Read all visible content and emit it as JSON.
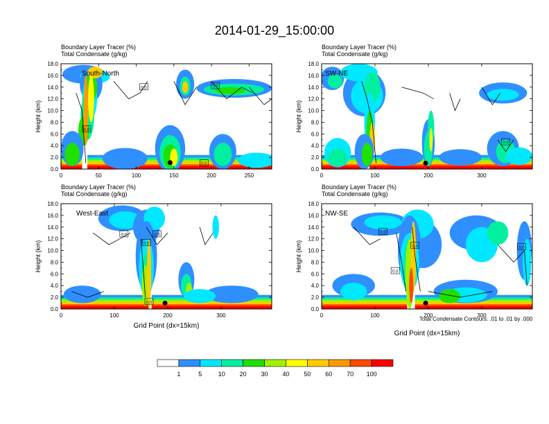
{
  "figure": {
    "title": "2014-01-29_15:00:00",
    "bottom_note": "Total Condensate Contours: .01 to .01 by .000"
  },
  "colorbar": {
    "labels": [
      "1",
      "5",
      "10",
      "20",
      "30",
      "40",
      "50",
      "60",
      "70",
      "100"
    ],
    "colors": [
      "#ffffff",
      "#2f8fff",
      "#00e8ff",
      "#00f0a0",
      "#20e000",
      "#a0f000",
      "#ffff00",
      "#ffcc00",
      "#ff9900",
      "#ff4a00",
      "#ff0000"
    ]
  },
  "chart_data": [
    {
      "type": "heatmap",
      "id": "sn",
      "label": "South-North",
      "subtitle_line1": "Boundary Layer Tracer    (%)",
      "subtitle_line2": "Total Condensate    (g/kg)",
      "ylabel": "Height (km)",
      "xlabel": "",
      "xlim": [
        0,
        280
      ],
      "ylim": [
        0,
        18
      ],
      "xticks": [
        0,
        50,
        100,
        150,
        200,
        250
      ],
      "yticks": [
        0,
        2,
        4,
        6,
        8,
        10,
        12,
        14,
        16,
        18
      ],
      "ytick_labels": [
        "0.0",
        "2.0",
        "4.0",
        "6.0",
        "8.0",
        "10.0",
        "12.0",
        "14.0",
        "16.0",
        "18.0"
      ],
      "contour_labels": [
        {
          "text": "0.0",
          "x": 110,
          "y": 14.0
        },
        {
          "text": "0.0",
          "x": 205,
          "y": 14.2
        },
        {
          "text": "0.0",
          "x": 34,
          "y": 6.8
        },
        {
          "text": "0.0",
          "x": 190,
          "y": 1.0
        }
      ],
      "marker": {
        "x": 145,
        "y": 1.1
      }
    },
    {
      "type": "heatmap",
      "id": "swne",
      "label": "SW-NE",
      "subtitle_line1": "Boundary Layer Tracer    (%)",
      "subtitle_line2": "Total Condensate    (g/kg)",
      "ylabel": "Height (km)",
      "xlabel": "",
      "xlim": [
        0,
        395
      ],
      "ylim": [
        0,
        18
      ],
      "xticks": [
        0,
        100,
        200,
        300
      ],
      "yticks": [
        0,
        2,
        4,
        6,
        8,
        10,
        12,
        14,
        16,
        18
      ],
      "ytick_labels": [
        "0.0",
        "2.0",
        "4.0",
        "6.0",
        "8.0",
        "10.0",
        "12.0",
        "14.0",
        "16.0",
        "18.0"
      ],
      "contour_labels": [
        {
          "text": "0.0",
          "x": 345,
          "y": 4.6
        }
      ],
      "marker": {
        "x": 195,
        "y": 1.0
      }
    },
    {
      "type": "heatmap",
      "id": "we",
      "label": "West-East",
      "subtitle_line1": "Boundary Layer Tracer    (%)",
      "subtitle_line2": "Total Condensate    (g/kg)",
      "ylabel": "Height (km)",
      "xlabel": "Grid Point (dx=15km)",
      "xlim": [
        0,
        395
      ],
      "ylim": [
        0,
        18
      ],
      "xticks": [
        0,
        100,
        200,
        300
      ],
      "yticks": [
        0,
        2,
        4,
        6,
        8,
        10,
        12,
        14,
        16,
        18
      ],
      "ytick_labels": [
        "0.0",
        "2.0",
        "4.0",
        "6.0",
        "8.0",
        "10.0",
        "12.0",
        "14.0",
        "16.0",
        "18.0"
      ],
      "contour_labels": [
        {
          "text": "0.0",
          "x": 118,
          "y": 12.8
        },
        {
          "text": "0.0",
          "x": 180,
          "y": 12.8
        },
        {
          "text": "0.0",
          "x": 160,
          "y": 11.3
        },
        {
          "text": "0.0",
          "x": 165,
          "y": 1.2
        }
      ],
      "marker": {
        "x": 195,
        "y": 1.0
      }
    },
    {
      "type": "heatmap",
      "id": "nwse",
      "label": "NW-SE",
      "subtitle_line1": "Boundary Layer Tracer    (%)",
      "subtitle_line2": "Total Condensate    (g/kg)",
      "ylabel": "Height (km)",
      "xlabel": "Grid Point (dx=15km)",
      "xlim": [
        0,
        395
      ],
      "ylim": [
        0,
        18
      ],
      "xticks": [
        0,
        100,
        200,
        300
      ],
      "yticks": [
        0,
        2,
        4,
        6,
        8,
        10,
        12,
        14,
        16,
        18
      ],
      "ytick_labels": [
        "0.0",
        "2.0",
        "4.0",
        "6.0",
        "8.0",
        "10.0",
        "12.0",
        "14.0",
        "16.0",
        "18.0"
      ],
      "contour_labels": [
        {
          "text": "0.0",
          "x": 115,
          "y": 13.2
        },
        {
          "text": "0.0",
          "x": 175,
          "y": 10.8
        },
        {
          "text": "0.0",
          "x": 138,
          "y": 6.5
        },
        {
          "text": "0.0",
          "x": 375,
          "y": 10.6
        }
      ],
      "marker": {
        "x": 195,
        "y": 1.0
      }
    }
  ]
}
